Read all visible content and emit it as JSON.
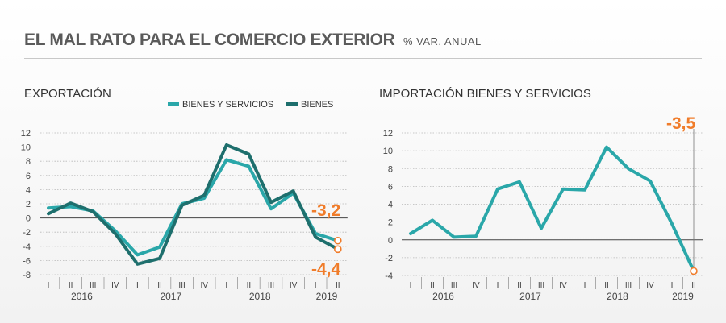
{
  "header": {
    "title": "EL MAL RATO PARA EL COMERCIO EXTERIOR",
    "subtitle": "% VAR. ANUAL"
  },
  "colors": {
    "bienes_y_servicios": "#2aa7a9",
    "bienes": "#1e6f6d",
    "highlight": "#f07c2a",
    "text": "#333333"
  },
  "chart_data": [
    {
      "type": "line",
      "title": "EXPORTACIÓN",
      "categories": [
        "I",
        "II",
        "III",
        "IV",
        "I",
        "II",
        "III",
        "IV",
        "I",
        "II",
        "III",
        "IV",
        "I",
        "II"
      ],
      "year_labels": [
        "2016",
        "2017",
        "2018",
        "2019"
      ],
      "ylim": [
        -8,
        12
      ],
      "yticks": [
        "12",
        "10",
        "8",
        "6",
        "4",
        "2",
        "0",
        "-2",
        "-4",
        "-6",
        "-8"
      ],
      "grid": true,
      "legend_position": "top-right",
      "series": [
        {
          "name": "BIENES Y SERVICIOS",
          "values": [
            1.4,
            1.6,
            1.0,
            -1.8,
            -5.2,
            -4.1,
            2.0,
            2.8,
            8.2,
            7.3,
            1.3,
            3.5,
            -2.2,
            -3.2
          ]
        },
        {
          "name": "BIENES",
          "values": [
            0.6,
            2.1,
            0.9,
            -2.2,
            -6.5,
            -5.7,
            1.8,
            3.2,
            10.3,
            9.0,
            2.2,
            3.8,
            -2.7,
            -4.4
          ]
        }
      ],
      "annotations": [
        "-3,2",
        "-4,4"
      ]
    },
    {
      "type": "line",
      "title": "IMPORTACIÓN BIENES Y SERVICIOS",
      "categories": [
        "I",
        "II",
        "III",
        "IV",
        "I",
        "II",
        "III",
        "IV",
        "I",
        "II",
        "III",
        "IV",
        "I",
        "II"
      ],
      "year_labels": [
        "2016",
        "2017",
        "2018",
        "2019"
      ],
      "ylim": [
        -4,
        12
      ],
      "yticks": [
        "12",
        "10",
        "8",
        "6",
        "4",
        "2",
        "0",
        "-2",
        "-4"
      ],
      "grid": true,
      "series": [
        {
          "name": "BIENES Y SERVICIOS",
          "values": [
            0.7,
            2.2,
            0.3,
            0.4,
            5.7,
            6.5,
            1.3,
            5.7,
            5.6,
            10.4,
            8.0,
            6.6,
            1.8,
            -3.5
          ]
        }
      ],
      "annotations": [
        "-3,5"
      ]
    }
  ]
}
